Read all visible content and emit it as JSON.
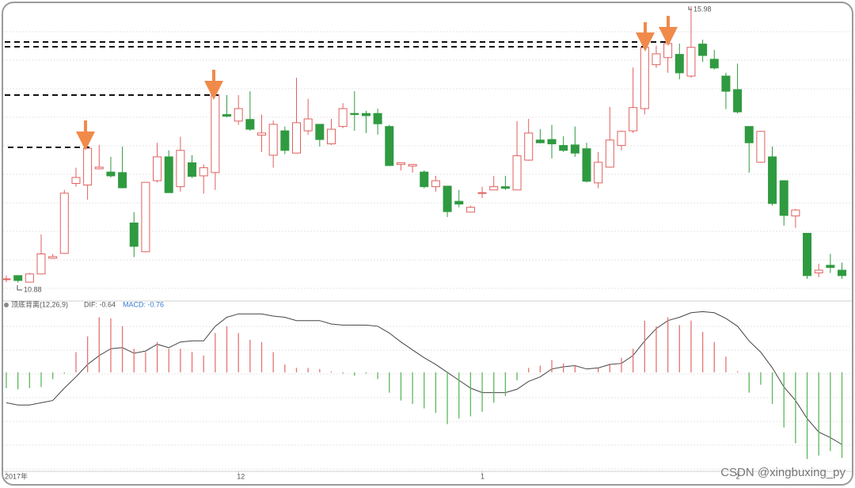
{
  "chart_data": [
    {
      "type": "candlestick",
      "categories": [
        "2017年",
        null,
        null,
        null,
        null,
        null,
        null,
        null,
        null,
        null,
        null,
        null,
        null,
        null,
        null,
        null,
        null,
        null,
        null,
        null,
        "12",
        null,
        null,
        null,
        null,
        null,
        null,
        null,
        null,
        null,
        null,
        null,
        null,
        null,
        null,
        null,
        null,
        null,
        null,
        null,
        null,
        "1",
        null,
        null,
        null,
        null,
        null,
        null,
        null,
        null,
        null,
        null,
        null,
        null,
        null,
        null,
        null,
        null,
        null,
        null,
        null,
        null,
        null,
        "2",
        null,
        null,
        null,
        null,
        null,
        null,
        null,
        null,
        null
      ],
      "open": [
        10.95,
        11.01,
        10.89,
        11.04,
        11.33,
        11.42,
        12.71,
        12.68,
        12.98,
        12.92,
        12.91,
        11.98,
        11.45,
        12.76,
        13.2,
        12.65,
        13.09,
        12.85,
        12.91,
        13.98,
        13.86,
        13.89,
        13.6,
        13.23,
        13.68,
        13.27,
        13.68,
        13.8,
        13.44,
        13.76,
        14.0,
        14.0,
        14.0,
        13.76,
        13.06,
        13.03,
        12.92,
        12.65,
        12.66,
        12.38,
        12.18,
        12.54,
        12.59,
        12.65,
        12.59,
        13.14,
        13.51,
        13.52,
        13.41,
        13.42,
        13.35,
        12.72,
        13.01,
        13.41,
        13.68,
        14.09,
        14.9,
        15.03,
        15.09,
        14.69,
        15.28,
        15.0,
        14.69,
        14.44,
        13.76,
        13.1,
        13.2,
        12.76,
        12.11,
        11.79,
        11.06,
        11.2,
        11.11
      ],
      "high": [
        11.01,
        11.01,
        11.06,
        11.77,
        11.41,
        12.59,
        13.0,
        13.42,
        13.42,
        13.2,
        13.39,
        12.18,
        12.73,
        13.46,
        13.32,
        13.57,
        13.23,
        13.06,
        14.37,
        14.34,
        14.34,
        14.41,
        13.98,
        13.87,
        13.76,
        14.66,
        14.27,
        13.8,
        13.9,
        14.19,
        14.41,
        14.05,
        14.09,
        13.79,
        13.09,
        13.06,
        12.95,
        12.85,
        12.66,
        12.59,
        12.3,
        12.65,
        12.85,
        12.85,
        13.86,
        13.9,
        13.71,
        13.79,
        13.58,
        13.76,
        13.46,
        13.29,
        14.12,
        13.68,
        14.85,
        15.68,
        15.25,
        15.54,
        15.29,
        15.98,
        15.36,
        15.17,
        14.75,
        14.92,
        13.76,
        13.68,
        13.39,
        12.76,
        12.24,
        11.79,
        11.23,
        11.41,
        11.25
      ],
      "low": [
        10.89,
        10.88,
        10.89,
        11.03,
        11.32,
        11.41,
        12.65,
        12.41,
        12.97,
        12.82,
        12.62,
        11.35,
        11.44,
        12.73,
        12.54,
        12.56,
        12.81,
        12.52,
        12.59,
        13.93,
        13.79,
        13.68,
        13.29,
        13.0,
        13.25,
        13.27,
        13.61,
        13.39,
        13.42,
        13.73,
        13.68,
        13.64,
        13.61,
        13.03,
        12.95,
        12.91,
        12.62,
        12.56,
        12.09,
        12.27,
        12.18,
        12.44,
        12.59,
        12.59,
        12.59,
        13.13,
        13.45,
        13.17,
        13.29,
        13.2,
        12.73,
        12.62,
        13.0,
        13.32,
        13.64,
        13.98,
        14.84,
        14.75,
        14.63,
        14.66,
        14.95,
        14.81,
        14.08,
        14.0,
        12.91,
        13.09,
        12.3,
        11.93,
        11.89,
        10.95,
        10.98,
        11.06,
        10.95
      ],
      "close": [
        10.95,
        10.92,
        11.04,
        11.41,
        11.36,
        12.53,
        12.82,
        13.36,
        13.01,
        12.85,
        12.63,
        11.55,
        12.73,
        13.2,
        12.54,
        13.32,
        12.84,
        13.0,
        14.34,
        13.95,
        14.09,
        13.71,
        13.64,
        13.8,
        13.32,
        13.83,
        13.9,
        13.52,
        13.71,
        14.09,
        13.98,
        13.96,
        13.81,
        13.04,
        13.09,
        13.06,
        12.65,
        12.76,
        12.19,
        12.33,
        12.27,
        12.54,
        12.65,
        12.62,
        13.22,
        13.64,
        13.46,
        13.44,
        13.32,
        13.27,
        12.75,
        13.1,
        13.51,
        13.67,
        14.11,
        15.22,
        15.1,
        15.29,
        14.75,
        15.22,
        15.07,
        14.84,
        14.41,
        14.03,
        13.46,
        13.67,
        12.34,
        12.12,
        12.22,
        11.01,
        11.11,
        11.16,
        11.01
      ],
      "up_color": "#e0605f",
      "down_color": "#2f9a40",
      "ylim": [
        10.57,
        16.02
      ],
      "grid": true
    },
    {
      "type": "macd",
      "title": "顶底背离(12,26,9)",
      "series": [
        {
          "name": "DIF: -0.64",
          "color": "#444444",
          "kind": "line",
          "values": [
            -0.27,
            -0.29,
            -0.29,
            -0.27,
            -0.25,
            -0.14,
            -0.04,
            0.07,
            0.15,
            0.21,
            0.22,
            0.17,
            0.19,
            0.25,
            0.22,
            0.27,
            0.28,
            0.28,
            0.41,
            0.49,
            0.52,
            0.52,
            0.52,
            0.5,
            0.49,
            0.46,
            0.46,
            0.46,
            0.43,
            0.42,
            0.42,
            0.42,
            0.41,
            0.35,
            0.27,
            0.2,
            0.13,
            0.07,
            0.0,
            -0.07,
            -0.14,
            -0.18,
            -0.18,
            -0.18,
            -0.15,
            -0.08,
            -0.04,
            0.03,
            0.05,
            0.06,
            0.03,
            0.04,
            0.07,
            0.08,
            0.15,
            0.28,
            0.39,
            0.46,
            0.49,
            0.53,
            0.54,
            0.53,
            0.48,
            0.41,
            0.28,
            0.18,
            0.04,
            -0.13,
            -0.25,
            -0.41,
            -0.53,
            -0.58,
            -0.64
          ]
        },
        {
          "name": "MACD: -0.76",
          "color": "#3a7bd5",
          "kind": "bar",
          "up_color": "#e57373",
          "down_color": "#5cb85c",
          "values": [
            -0.14,
            -0.15,
            -0.14,
            -0.13,
            -0.06,
            -0.01,
            0.18,
            0.32,
            0.49,
            0.48,
            0.41,
            0.21,
            0.18,
            0.27,
            0.21,
            0.21,
            0.18,
            0.15,
            0.35,
            0.41,
            0.35,
            0.29,
            0.27,
            0.18,
            0.07,
            0.04,
            0.04,
            0.03,
            0.01,
            -0.01,
            -0.03,
            -0.01,
            -0.06,
            -0.18,
            -0.25,
            -0.28,
            -0.32,
            -0.36,
            -0.46,
            -0.41,
            -0.39,
            -0.35,
            -0.27,
            -0.21,
            -0.07,
            0.04,
            0.06,
            0.11,
            0.08,
            0.06,
            0.0,
            0.04,
            0.08,
            0.13,
            0.21,
            0.46,
            0.41,
            0.49,
            0.42,
            0.46,
            0.36,
            0.27,
            0.14,
            0.01,
            -0.18,
            -0.11,
            -0.28,
            -0.49,
            -0.63,
            -0.77,
            -0.74,
            -0.7,
            -0.76
          ]
        }
      ],
      "ylim": [
        -0.95,
        0.62
      ],
      "grid": true
    }
  ],
  "watermark": "CSDN @xingbuxing_py"
}
